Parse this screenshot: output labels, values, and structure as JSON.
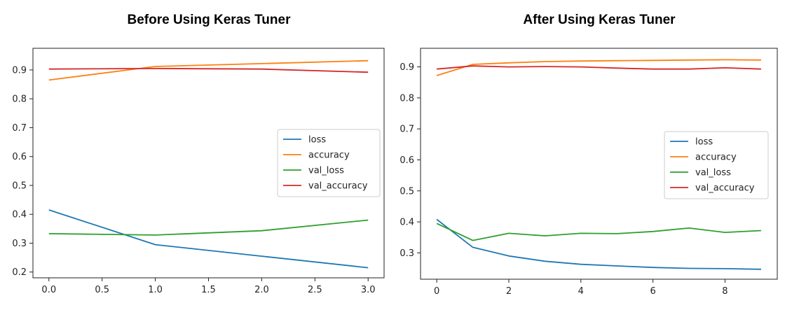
{
  "chart_data": [
    {
      "type": "line",
      "title": "Before Using Keras Tuner",
      "x": [
        0,
        1,
        2,
        3
      ],
      "xlim": [
        -0.15,
        3.15
      ],
      "ylim": [
        0.18,
        0.975
      ],
      "xticks": [
        "0.0",
        "0.5",
        "1.0",
        "1.5",
        "2.0",
        "2.5",
        "3.0"
      ],
      "xtick_values": [
        0,
        0.5,
        1,
        1.5,
        2,
        2.5,
        3
      ],
      "yticks": [
        "0.2",
        "0.3",
        "0.4",
        "0.5",
        "0.6",
        "0.7",
        "0.8",
        "0.9"
      ],
      "ytick_values": [
        0.2,
        0.3,
        0.4,
        0.5,
        0.6,
        0.7,
        0.8,
        0.9
      ],
      "grid": false,
      "legend_position": "center-right",
      "series": [
        {
          "name": "loss",
          "color": "#1f77b4",
          "values": [
            0.415,
            0.295,
            0.255,
            0.215
          ]
        },
        {
          "name": "accuracy",
          "color": "#ff7f0e",
          "values": [
            0.865,
            0.912,
            0.922,
            0.932
          ]
        },
        {
          "name": "val_loss",
          "color": "#2ca02c",
          "values": [
            0.333,
            0.328,
            0.343,
            0.38
          ]
        },
        {
          "name": "val_accuracy",
          "color": "#d62728",
          "values": [
            0.903,
            0.905,
            0.903,
            0.892
          ]
        }
      ]
    },
    {
      "type": "line",
      "title": "After Using Keras Tuner",
      "x": [
        0,
        1,
        2,
        3,
        4,
        5,
        6,
        7,
        8,
        9
      ],
      "xlim": [
        -0.45,
        9.45
      ],
      "ylim": [
        0.215,
        0.96
      ],
      "xticks": [
        "0",
        "2",
        "4",
        "6",
        "8"
      ],
      "xtick_values": [
        0,
        2,
        4,
        6,
        8
      ],
      "yticks": [
        "0.3",
        "0.4",
        "0.5",
        "0.6",
        "0.7",
        "0.8",
        "0.9"
      ],
      "ytick_values": [
        0.3,
        0.4,
        0.5,
        0.6,
        0.7,
        0.8,
        0.9
      ],
      "grid": false,
      "legend_position": "center-right",
      "series": [
        {
          "name": "loss",
          "color": "#1f77b4",
          "values": [
            0.408,
            0.318,
            0.29,
            0.273,
            0.263,
            0.258,
            0.253,
            0.25,
            0.249,
            0.247
          ]
        },
        {
          "name": "accuracy",
          "color": "#ff7f0e",
          "values": [
            0.872,
            0.908,
            0.913,
            0.917,
            0.919,
            0.92,
            0.921,
            0.922,
            0.923,
            0.922
          ]
        },
        {
          "name": "val_loss",
          "color": "#2ca02c",
          "values": [
            0.395,
            0.34,
            0.363,
            0.355,
            0.363,
            0.362,
            0.369,
            0.38,
            0.366,
            0.372
          ]
        },
        {
          "name": "val_accuracy",
          "color": "#d62728",
          "values": [
            0.893,
            0.903,
            0.9,
            0.901,
            0.9,
            0.896,
            0.893,
            0.893,
            0.897,
            0.893
          ]
        }
      ]
    }
  ]
}
